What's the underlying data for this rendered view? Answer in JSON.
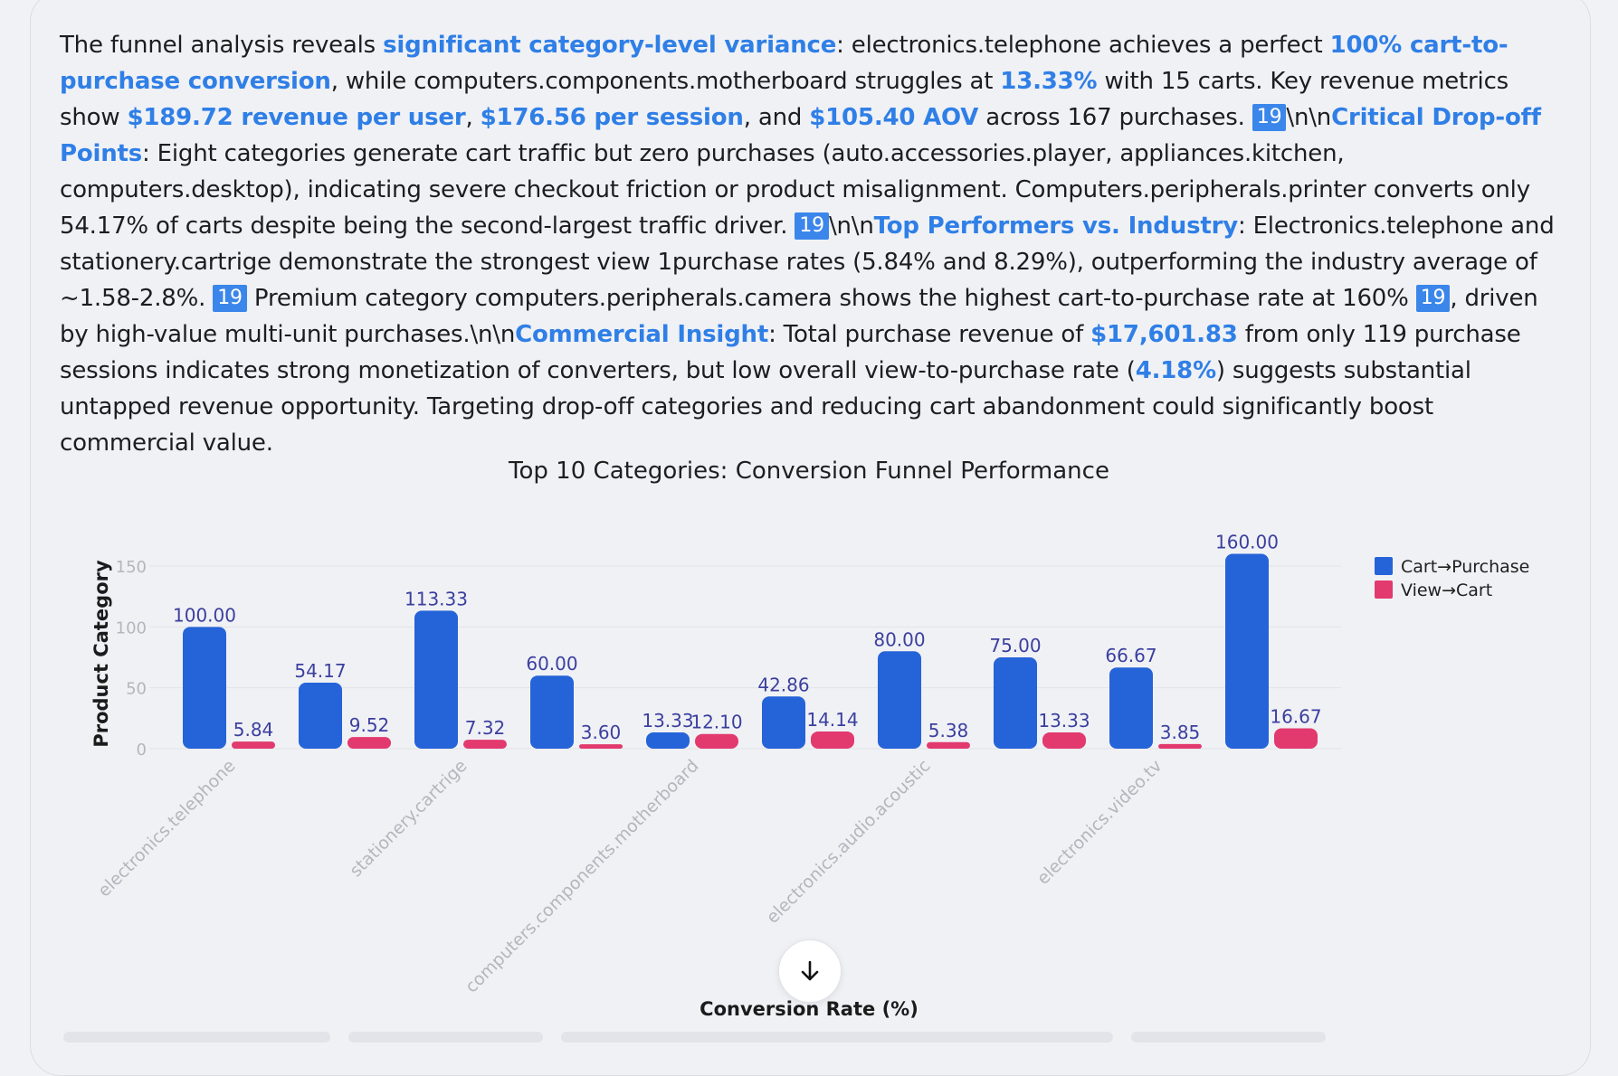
{
  "summary": {
    "p1_t1": "The funnel analysis reveals ",
    "p1_h1": "significant category-level variance",
    "p1_t2": ": electronics.telephone achieves a perfect ",
    "p1_h2": "100% cart-to-purchase conversion",
    "p1_t3": ", while computers.components.motherboard struggles at ",
    "p1_h3": "13.33%",
    "p1_t4": " with 15 carts. Key revenue metrics show ",
    "p1_h4": "$189.72 revenue per user",
    "p1_t5": ", ",
    "p1_h5": "$176.56 per session",
    "p1_t6": ", and ",
    "p1_h6": "$105.40 AOV",
    "p1_t7": " across 167 purchases. ",
    "cite": "19",
    "nl": "\\n\\n",
    "p2_h1": "Critical Drop-off Points",
    "p2_t1": ": Eight categories generate cart traffic but zero purchases (auto.accessories.player, appliances.kitchen, computers.desktop), indicating severe checkout friction or product misalignment. Computers.peripherals.printer converts only 54.17% of carts despite being the second-largest traffic driver. ",
    "p3_h1": "Top Performers vs. Industry",
    "p3_t1": ": Electronics.telephone and stationery.cartrige demonstrate the strongest view 1purchase rates (5.84% and 8.29%), outperforming the industry average of ~1.58-2.8%. ",
    "p3_t2": " Premium category computers.peripherals.camera shows the highest cart-to-purchase rate at 160% ",
    "p3_t3": ", driven by high-value multi-unit purchases.",
    "p4_h1": "Commercial Insight",
    "p4_t1": ": Total purchase revenue of ",
    "p4_h2": "$17,601.83",
    "p4_t2": " from only 119 purchase sessions indicates strong monetization of converters, but low overall view-to-purchase rate (",
    "p4_h3": "4.18%",
    "p4_t3": ") suggests substantial untapped revenue opportunity. Targeting drop-off categories and reducing cart abandonment could significantly boost commercial value."
  },
  "chart_data": {
    "type": "bar",
    "title": "Top 10 Categories: Conversion Funnel Performance",
    "xlabel": "Conversion Rate (%)",
    "ylabel": "Product Category",
    "ylim": [
      0,
      150
    ],
    "yticks": [
      0,
      50,
      100,
      150
    ],
    "grid": true,
    "legend_position": "top-right",
    "categories": [
      "electronics.telephone",
      "",
      "stationery.cartrige",
      "",
      "computers.components.motherboard",
      "",
      "electronics.audio.acoustic",
      "",
      "electronics.video.tv",
      ""
    ],
    "series": [
      {
        "name": "Cart→Purchase",
        "color": "#2563d8",
        "values": [
          100.0,
          54.17,
          113.33,
          60.0,
          13.33,
          42.86,
          80.0,
          75.0,
          66.67,
          160.0
        ],
        "labels": [
          "100.00",
          "54.17",
          "113.33",
          "60.00",
          "13.33",
          "42.86",
          "80.00",
          "75.00",
          "66.67",
          "160.00"
        ]
      },
      {
        "name": "View→Cart",
        "color": "#e23a6e",
        "values": [
          5.84,
          9.52,
          7.32,
          3.6,
          12.1,
          14.14,
          5.38,
          13.33,
          3.85,
          16.67
        ],
        "labels": [
          "5.84",
          "9.52",
          "7.32",
          "3.60",
          "12.10",
          "14.14",
          "5.38",
          "13.33",
          "3.85",
          "16.67"
        ]
      }
    ]
  }
}
